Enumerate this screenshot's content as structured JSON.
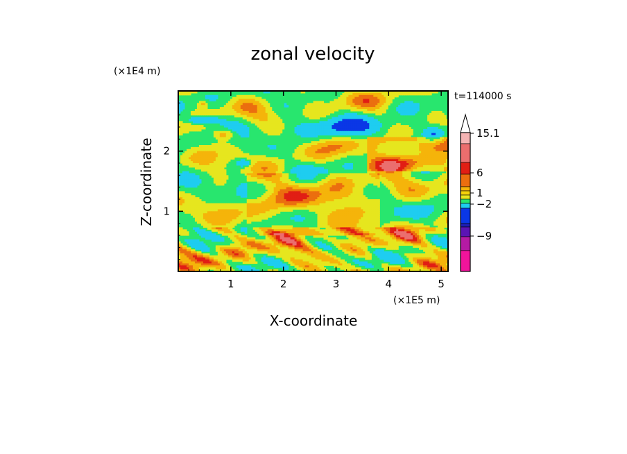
{
  "chart_data": {
    "type": "heatmap",
    "title": "zonal velocity",
    "xlabel": "X-coordinate",
    "ylabel": "Z-coordinate",
    "x_scale_label": "(×1E5 m)",
    "y_scale_label": "(×1E4 m)",
    "time_label": "t=114000 s",
    "xlim": [
      0,
      5.13
    ],
    "ylim": [
      0,
      3.0
    ],
    "x_ticks": [
      1,
      2,
      3,
      4,
      5
    ],
    "y_ticks": [
      1,
      2
    ],
    "colorbar": {
      "levels": [
        -9,
        -2,
        1,
        6,
        15.1
      ],
      "labels": [
        "15.1",
        "6",
        "1",
        "−2",
        "−9"
      ],
      "colors": [
        "#f0149b",
        "#b41aa4",
        "#5a14b4",
        "#1e1eb4",
        "#0a37e6",
        "#1ecdf0",
        "#28e66e",
        "#e6e61e",
        "#f5d20a",
        "#f5b40a",
        "#eb6e0f",
        "#e11e14",
        "#eb6e6e",
        "#f5b4b4"
      ],
      "extend": "max"
    }
  }
}
